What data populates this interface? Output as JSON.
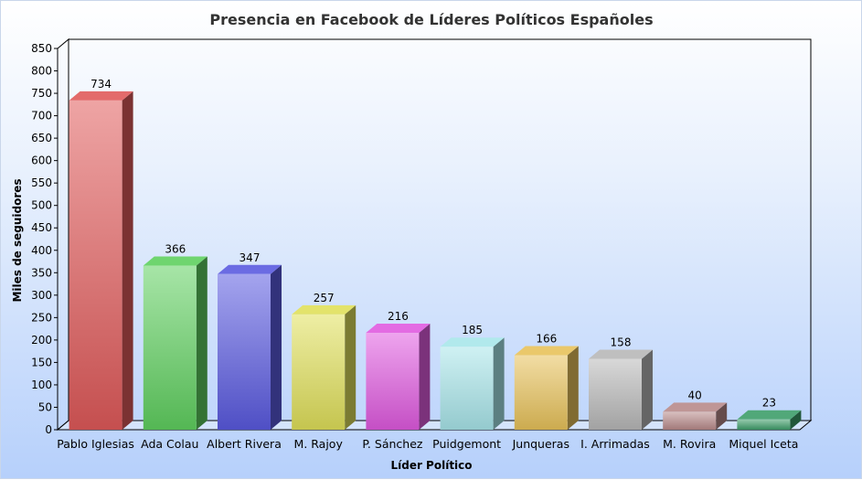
{
  "chart_data": {
    "type": "bar",
    "title": "Presencia en Facebook de Líderes Políticos Españoles",
    "xlabel": "Líder Político",
    "ylabel": "Miles de seguidores",
    "ylim": [
      0,
      850
    ],
    "ytick_step": 50,
    "grid": false,
    "legend": "none",
    "categories": [
      "Pablo Iglesias",
      "Ada Colau",
      "Albert Rivera",
      "M. Rajoy",
      "P. Sánchez",
      "Puidgemont",
      "Junqueras",
      "I. Arrimadas",
      "M. Rovira",
      "Miquel Iceta"
    ],
    "values": [
      734,
      366,
      347,
      257,
      216,
      185,
      166,
      158,
      40,
      23
    ],
    "colors": [
      "#e05a5a",
      "#5fd05f",
      "#5a5ae0",
      "#e0e05a",
      "#e05ae0",
      "#a8e6ea",
      "#e8c25a",
      "#b8b8b8",
      "#b88a8a",
      "#3e9e6a"
    ]
  }
}
